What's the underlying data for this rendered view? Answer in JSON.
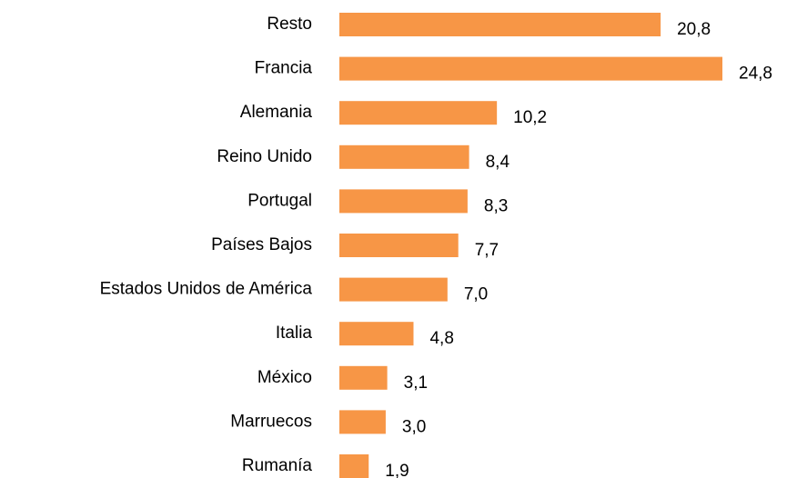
{
  "chart_data": {
    "type": "bar",
    "orientation": "horizontal",
    "categories": [
      "Resto",
      "Francia",
      "Alemania",
      "Reino Unido",
      "Portugal",
      "Países Bajos",
      "Estados Unidos de América",
      "Italia",
      "México",
      "Marruecos",
      "Rumanía"
    ],
    "values": [
      20.8,
      24.8,
      10.2,
      8.4,
      8.3,
      7.7,
      7.0,
      4.8,
      3.1,
      3.0,
      1.9
    ],
    "value_labels": [
      "20,8",
      "24,8",
      "10,2",
      "8,4",
      "8,3",
      "7,7",
      "7,0",
      "4,8",
      "3,1",
      "3,0",
      "1,9"
    ],
    "color": "#f79646"
  }
}
